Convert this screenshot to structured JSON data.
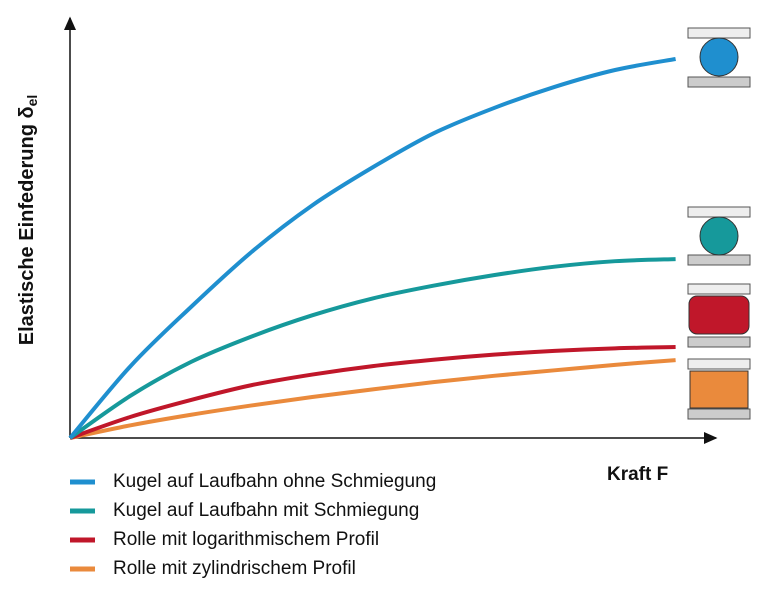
{
  "chart_data": {
    "type": "line",
    "y_label": "Elastische Einfederung δ",
    "y_label_sub": "el",
    "x_label": "Kraft F",
    "x": [
      0,
      1,
      2,
      3,
      4,
      5,
      6,
      7,
      8,
      9,
      10
    ],
    "xlim": [
      0,
      10.7
    ],
    "ylim": [
      0,
      100
    ],
    "series": [
      {
        "name": "Kugel auf Laufbahn ohne Schmiegung",
        "color": "#1f8fcf",
        "values": [
          0,
          17,
          31,
          44,
          55,
          64,
          72,
          78,
          83,
          87,
          89.6
        ]
      },
      {
        "name": "Kugel auf Laufbahn mit Schmiegung",
        "color": "#16999b",
        "values": [
          0,
          10,
          18,
          24,
          29,
          33,
          36,
          38.5,
          40.5,
          41.8,
          42.3
        ]
      },
      {
        "name": "Rolle mit logarithmischem Profil",
        "color": "#c0172a",
        "values": [
          0,
          5,
          9,
          12.5,
          15,
          17,
          18.5,
          19.7,
          20.6,
          21.2,
          21.5
        ]
      },
      {
        "name": "Rolle mit zylindrischem Profil",
        "color": "#ea8a3c",
        "values": [
          0,
          3,
          5.5,
          7.7,
          9.7,
          11.5,
          13.2,
          14.7,
          16,
          17.3,
          18.4
        ]
      }
    ]
  }
}
